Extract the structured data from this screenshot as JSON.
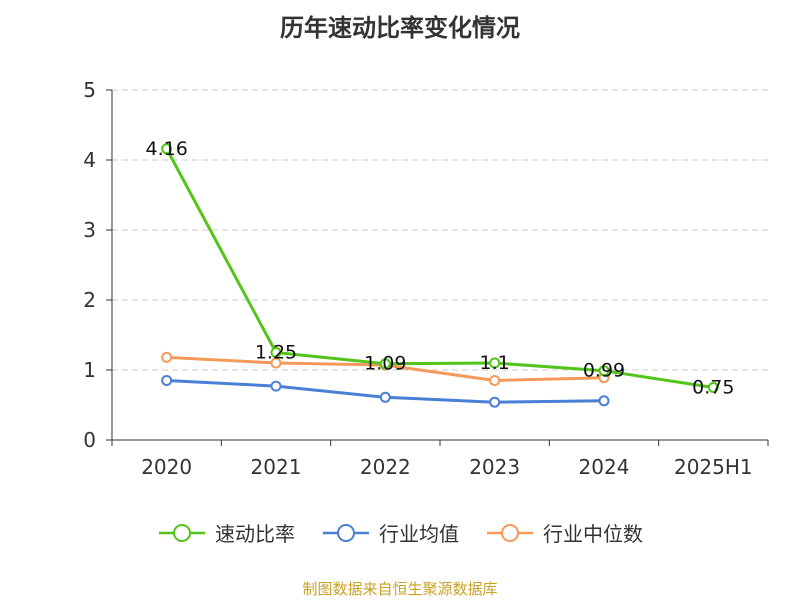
{
  "chart_data": {
    "type": "line",
    "title": "历年速动比率变化情况",
    "categories": [
      "2020",
      "2021",
      "2022",
      "2023",
      "2024",
      "2025H1"
    ],
    "ylim": [
      0,
      5
    ],
    "yticks": [
      0,
      1,
      2,
      3,
      4,
      5
    ],
    "grid": true,
    "legend_position": "bottom",
    "series": [
      {
        "name": "速动比率",
        "color": "#52c41a",
        "values": [
          4.16,
          1.25,
          1.09,
          1.1,
          0.99,
          0.75
        ],
        "labels": [
          "4.16",
          "1.25",
          "1.09",
          "1.1",
          "0.99",
          "0.75"
        ]
      },
      {
        "name": "行业均值",
        "color": "#4a7fd6",
        "values": [
          0.85,
          0.77,
          0.61,
          0.54,
          0.56,
          null
        ]
      },
      {
        "name": "行业中位数",
        "color": "#f59a5b",
        "values": [
          1.18,
          1.1,
          1.07,
          0.85,
          0.89,
          null
        ]
      }
    ]
  },
  "source_text": "制图数据来自恒生聚源数据库"
}
